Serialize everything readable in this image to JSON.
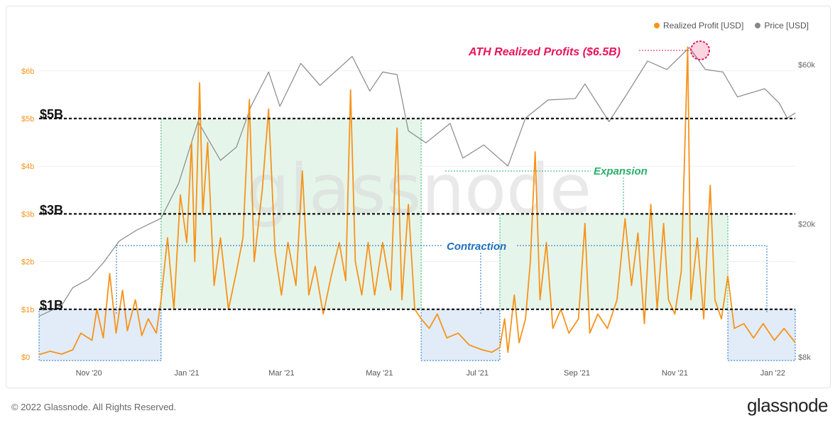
{
  "legend": {
    "profit_label": "Realized Profit [USD]",
    "price_label": "Price [USD]"
  },
  "colors": {
    "profit": "#F7931A",
    "price": "#888888",
    "expansion": "#2AAE6A",
    "contraction": "#1E6FC0",
    "ath": "#E8145C"
  },
  "annotations": {
    "ath": "ATH Realized Profits ($6.5B)",
    "expansion": "Expansion",
    "contraction": "Contraction",
    "level_5b": "$5B",
    "level_3b": "$3B",
    "level_1b": "$1B"
  },
  "watermark": "glassnode",
  "footer": {
    "copyright": "© 2022 Glassnode. All Rights Reserved.",
    "brand": "glassnode"
  },
  "chart_data": {
    "type": "line",
    "title": "",
    "x_start": "2020-10-01",
    "x_end": "2022-01-15",
    "x_ticks": [
      {
        "date": "2020-11-01",
        "label": "Nov '20"
      },
      {
        "date": "2021-01-01",
        "label": "Jan '21"
      },
      {
        "date": "2021-03-01",
        "label": "Mar '21"
      },
      {
        "date": "2021-05-01",
        "label": "May '21"
      },
      {
        "date": "2021-07-01",
        "label": "Jul '21"
      },
      {
        "date": "2021-09-01",
        "label": "Sep '21"
      },
      {
        "date": "2021-11-01",
        "label": "Nov '21"
      },
      {
        "date": "2022-01-01",
        "label": "Jan '22"
      }
    ],
    "y_left": {
      "ticks": [
        {
          "value": 0,
          "label": "$0"
        },
        {
          "value": 1,
          "label": "$1b"
        },
        {
          "value": 2,
          "label": "$2b"
        },
        {
          "value": 3,
          "label": "$3b"
        },
        {
          "value": 4,
          "label": "$4b"
        },
        {
          "value": 5,
          "label": "$5b"
        },
        {
          "value": 6,
          "label": "$6b"
        }
      ],
      "range": [
        0,
        6.5
      ]
    },
    "y_right": {
      "scale": "log",
      "ticks": [
        {
          "value": 8000,
          "label": "$8k"
        },
        {
          "value": 20000,
          "label": "$20k"
        },
        {
          "value": 60000,
          "label": "$60k"
        }
      ],
      "range": [
        8000,
        60000
      ]
    },
    "reference_lines": [
      1,
      3,
      5
    ],
    "zones": [
      {
        "kind": "contraction",
        "start": "2020-10-01",
        "end": "2020-12-16",
        "low": 0,
        "high": 1
      },
      {
        "kind": "expansion",
        "start": "2020-12-16",
        "end": "2021-05-27",
        "low": 1,
        "high": 5
      },
      {
        "kind": "contraction",
        "start": "2021-05-27",
        "end": "2021-07-15",
        "low": 0,
        "high": 1
      },
      {
        "kind": "expansion",
        "start": "2021-07-15",
        "end": "2021-12-04",
        "low": 1,
        "high": 3
      },
      {
        "kind": "contraction",
        "start": "2021-12-04",
        "end": "2022-01-15",
        "low": 0,
        "high": 1
      }
    ],
    "series": [
      {
        "name": "Realized Profit [USD]",
        "axis": "left",
        "points": [
          [
            "2020-10-01",
            0.05
          ],
          [
            "2020-10-08",
            0.12
          ],
          [
            "2020-10-15",
            0.06
          ],
          [
            "2020-10-22",
            0.15
          ],
          [
            "2020-10-27",
            0.5
          ],
          [
            "2020-11-03",
            0.35
          ],
          [
            "2020-11-06",
            1.0
          ],
          [
            "2020-11-10",
            0.4
          ],
          [
            "2020-11-14",
            1.75
          ],
          [
            "2020-11-18",
            0.5
          ],
          [
            "2020-11-22",
            1.4
          ],
          [
            "2020-11-25",
            0.55
          ],
          [
            "2020-11-30",
            1.2
          ],
          [
            "2020-12-04",
            0.45
          ],
          [
            "2020-12-08",
            0.8
          ],
          [
            "2020-12-13",
            0.5
          ],
          [
            "2020-12-16",
            1.2
          ],
          [
            "2020-12-20",
            2.5
          ],
          [
            "2020-12-24",
            1.0
          ],
          [
            "2020-12-28",
            3.4
          ],
          [
            "2021-01-01",
            2.4
          ],
          [
            "2021-01-04",
            4.5
          ],
          [
            "2021-01-06",
            2.0
          ],
          [
            "2021-01-09",
            5.75
          ],
          [
            "2021-01-11",
            3.0
          ],
          [
            "2021-01-14",
            4.5
          ],
          [
            "2021-01-18",
            1.5
          ],
          [
            "2021-01-22",
            2.5
          ],
          [
            "2021-01-27",
            1.0
          ],
          [
            "2021-02-01",
            1.8
          ],
          [
            "2021-02-05",
            2.5
          ],
          [
            "2021-02-09",
            5.4
          ],
          [
            "2021-02-12",
            2.0
          ],
          [
            "2021-02-17",
            3.5
          ],
          [
            "2021-02-21",
            5.2
          ],
          [
            "2021-02-25",
            2.2
          ],
          [
            "2021-03-01",
            1.3
          ],
          [
            "2021-03-05",
            2.4
          ],
          [
            "2021-03-10",
            1.5
          ],
          [
            "2021-03-14",
            3.9
          ],
          [
            "2021-03-18",
            1.3
          ],
          [
            "2021-03-22",
            1.9
          ],
          [
            "2021-03-27",
            0.9
          ],
          [
            "2021-04-01",
            1.7
          ],
          [
            "2021-04-06",
            2.4
          ],
          [
            "2021-04-10",
            1.6
          ],
          [
            "2021-04-13",
            5.6
          ],
          [
            "2021-04-16",
            2.0
          ],
          [
            "2021-04-20",
            1.3
          ],
          [
            "2021-04-24",
            2.4
          ],
          [
            "2021-04-28",
            1.3
          ],
          [
            "2021-05-03",
            2.4
          ],
          [
            "2021-05-08",
            1.4
          ],
          [
            "2021-05-12",
            4.8
          ],
          [
            "2021-05-15",
            1.2
          ],
          [
            "2021-05-19",
            3.2
          ],
          [
            "2021-05-23",
            1.0
          ],
          [
            "2021-05-27",
            0.8
          ],
          [
            "2021-06-01",
            0.6
          ],
          [
            "2021-06-06",
            0.9
          ],
          [
            "2021-06-12",
            0.4
          ],
          [
            "2021-06-19",
            0.5
          ],
          [
            "2021-06-26",
            0.25
          ],
          [
            "2021-07-04",
            0.15
          ],
          [
            "2021-07-10",
            0.1
          ],
          [
            "2021-07-15",
            0.2
          ],
          [
            "2021-07-18",
            0.8
          ],
          [
            "2021-07-20",
            0.1
          ],
          [
            "2021-07-24",
            1.3
          ],
          [
            "2021-07-27",
            0.3
          ],
          [
            "2021-07-31",
            0.8
          ],
          [
            "2021-08-03",
            2.0
          ],
          [
            "2021-08-06",
            4.3
          ],
          [
            "2021-08-09",
            1.2
          ],
          [
            "2021-08-13",
            2.4
          ],
          [
            "2021-08-17",
            0.6
          ],
          [
            "2021-08-22",
            1.0
          ],
          [
            "2021-08-27",
            0.5
          ],
          [
            "2021-09-02",
            0.8
          ],
          [
            "2021-09-06",
            2.8
          ],
          [
            "2021-09-09",
            0.5
          ],
          [
            "2021-09-14",
            0.9
          ],
          [
            "2021-09-20",
            0.6
          ],
          [
            "2021-09-26",
            1.2
          ],
          [
            "2021-10-01",
            2.9
          ],
          [
            "2021-10-05",
            1.5
          ],
          [
            "2021-10-09",
            2.6
          ],
          [
            "2021-10-13",
            0.7
          ],
          [
            "2021-10-17",
            3.2
          ],
          [
            "2021-10-21",
            1.0
          ],
          [
            "2021-10-25",
            2.8
          ],
          [
            "2021-10-28",
            1.2
          ],
          [
            "2021-11-01",
            0.9
          ],
          [
            "2021-11-05",
            1.8
          ],
          [
            "2021-11-09",
            6.5
          ],
          [
            "2021-11-11",
            1.2
          ],
          [
            "2021-11-15",
            2.5
          ],
          [
            "2021-11-19",
            0.8
          ],
          [
            "2021-11-23",
            3.6
          ],
          [
            "2021-11-26",
            1.2
          ],
          [
            "2021-11-30",
            0.8
          ],
          [
            "2021-12-04",
            1.7
          ],
          [
            "2021-12-08",
            0.6
          ],
          [
            "2021-12-14",
            0.7
          ],
          [
            "2021-12-20",
            0.4
          ],
          [
            "2021-12-26",
            0.7
          ],
          [
            "2022-01-02",
            0.35
          ],
          [
            "2022-01-08",
            0.6
          ],
          [
            "2022-01-15",
            0.3
          ]
        ]
      },
      {
        "name": "Price [USD]",
        "axis": "right",
        "points": [
          [
            "2020-10-01",
            10600
          ],
          [
            "2020-10-15",
            11400
          ],
          [
            "2020-10-22",
            12900
          ],
          [
            "2020-11-01",
            13700
          ],
          [
            "2020-11-10",
            15300
          ],
          [
            "2020-11-20",
            17800
          ],
          [
            "2020-12-01",
            19200
          ],
          [
            "2020-12-16",
            20800
          ],
          [
            "2020-12-27",
            26500
          ],
          [
            "2021-01-08",
            40500
          ],
          [
            "2021-01-22",
            31000
          ],
          [
            "2021-02-01",
            34000
          ],
          [
            "2021-02-10",
            45000
          ],
          [
            "2021-02-21",
            57000
          ],
          [
            "2021-02-28",
            45000
          ],
          [
            "2021-03-13",
            60500
          ],
          [
            "2021-03-25",
            52000
          ],
          [
            "2021-04-14",
            63500
          ],
          [
            "2021-04-25",
            50000
          ],
          [
            "2021-05-03",
            57000
          ],
          [
            "2021-05-12",
            56000
          ],
          [
            "2021-05-19",
            38000
          ],
          [
            "2021-05-30",
            35000
          ],
          [
            "2021-06-14",
            40000
          ],
          [
            "2021-06-22",
            31500
          ],
          [
            "2021-07-05",
            34500
          ],
          [
            "2021-07-20",
            29800
          ],
          [
            "2021-07-31",
            41500
          ],
          [
            "2021-08-14",
            47000
          ],
          [
            "2021-08-31",
            47500
          ],
          [
            "2021-09-06",
            52500
          ],
          [
            "2021-09-21",
            40500
          ],
          [
            "2021-10-01",
            48000
          ],
          [
            "2021-10-15",
            61500
          ],
          [
            "2021-10-27",
            58000
          ],
          [
            "2021-11-10",
            67500
          ],
          [
            "2021-11-20",
            58000
          ],
          [
            "2021-12-01",
            57000
          ],
          [
            "2021-12-10",
            48000
          ],
          [
            "2021-12-27",
            50800
          ],
          [
            "2022-01-05",
            46000
          ],
          [
            "2022-01-10",
            41500
          ],
          [
            "2022-01-15",
            43000
          ]
        ]
      }
    ]
  }
}
